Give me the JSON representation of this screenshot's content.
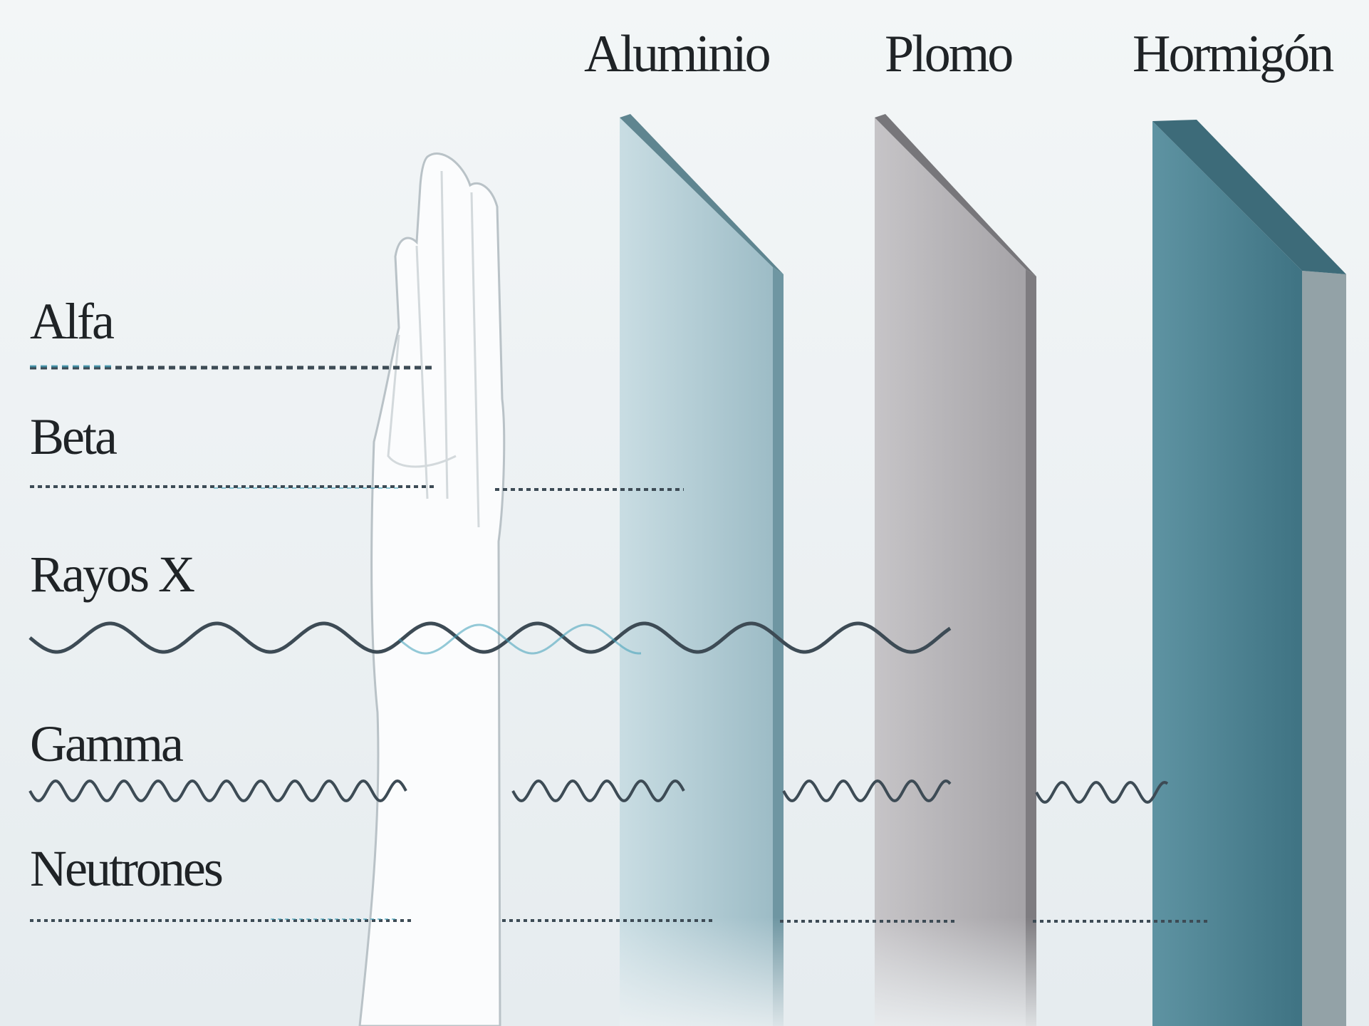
{
  "materials": [
    {
      "id": "aluminio",
      "label": "Aluminio",
      "color_front": "#a9c6cf",
      "color_side": "#7fa3ae",
      "color_top": "#5f8590"
    },
    {
      "id": "plomo",
      "label": "Plomo",
      "color_front": "#b3b1b4",
      "color_side": "#8f8d91",
      "color_top": "#77767a"
    },
    {
      "id": "hormigon",
      "label": "Hormigón",
      "color_front": "#4f8291",
      "color_side": "#8f9da2",
      "color_top": "#3d6b79"
    }
  ],
  "radiations": [
    {
      "id": "alfa",
      "label": "Alfa",
      "style": "dashed",
      "stops_after": "hand"
    },
    {
      "id": "beta",
      "label": "Beta",
      "style": "dashed",
      "stops_after": "Aluminio"
    },
    {
      "id": "rayos-x",
      "label": "Rayos X",
      "style": "wave",
      "stops_after": "Plomo"
    },
    {
      "id": "gamma",
      "label": "Gamma",
      "style": "wave",
      "stops_after": "Hormigón"
    },
    {
      "id": "neutrones",
      "label": "Neutrones",
      "style": "dashed",
      "stops_after": "Hormigón"
    }
  ],
  "colors": {
    "background": "#eef2f4",
    "ray_dark": "#3d4b55",
    "ray_teal": "#3e9fb8",
    "hand_fill": "#fbfcfd",
    "hand_outline": "#b9c2c7"
  },
  "icons": {
    "hand": "hand-icon"
  }
}
